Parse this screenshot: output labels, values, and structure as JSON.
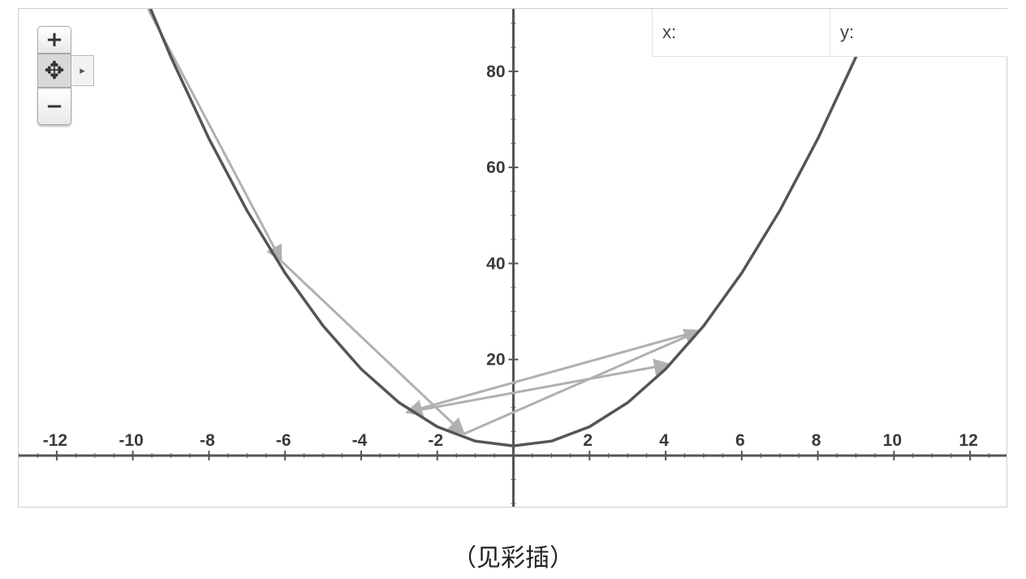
{
  "chart_data": {
    "type": "line",
    "function": "x^2 + 2",
    "xlim": [
      -13,
      13
    ],
    "ylim": [
      -11,
      93
    ],
    "x_ticks": [
      -12,
      -10,
      -8,
      -6,
      -4,
      -2,
      2,
      4,
      6,
      8,
      10,
      12
    ],
    "y_ticks": [
      20,
      40,
      60,
      80
    ],
    "grid": false,
    "curve": {
      "x": [
        -9.8,
        -9,
        -8,
        -7,
        -6,
        -5,
        -4,
        -3,
        -2,
        -1,
        0,
        1,
        2,
        3,
        4,
        5,
        6,
        7,
        8,
        9,
        9.2
      ],
      "y": [
        98.04,
        83,
        66,
        51,
        38,
        27,
        18,
        11,
        6,
        3,
        2,
        3,
        6,
        11,
        18,
        27,
        38,
        51,
        66,
        83,
        86.64
      ]
    },
    "arrows": [
      {
        "from": [
          -9.6,
          93.0
        ],
        "to": [
          -6.1,
          40.5
        ]
      },
      {
        "from": [
          -6.1,
          40.5
        ],
        "to": [
          -1.3,
          4.5
        ]
      },
      {
        "from": [
          -1.3,
          4.5
        ],
        "to": [
          4.9,
          26.0
        ]
      },
      {
        "from": [
          4.9,
          26.0
        ],
        "to": [
          -2.8,
          9.0
        ]
      },
      {
        "from": [
          -2.8,
          9.0
        ],
        "to": [
          4.1,
          19.0
        ]
      }
    ],
    "colors": {
      "curve": "#555555",
      "arrow": "#b0b0b0",
      "axis": "#555555"
    }
  },
  "controls": {
    "zoom_in_icon": "+",
    "pan_icon": "✥",
    "expand_icon": "▸",
    "zoom_out_icon": "−"
  },
  "coords": {
    "x_label": "x:",
    "x_value": "",
    "y_label": "y:",
    "y_value": ""
  },
  "caption": "（见彩插）"
}
